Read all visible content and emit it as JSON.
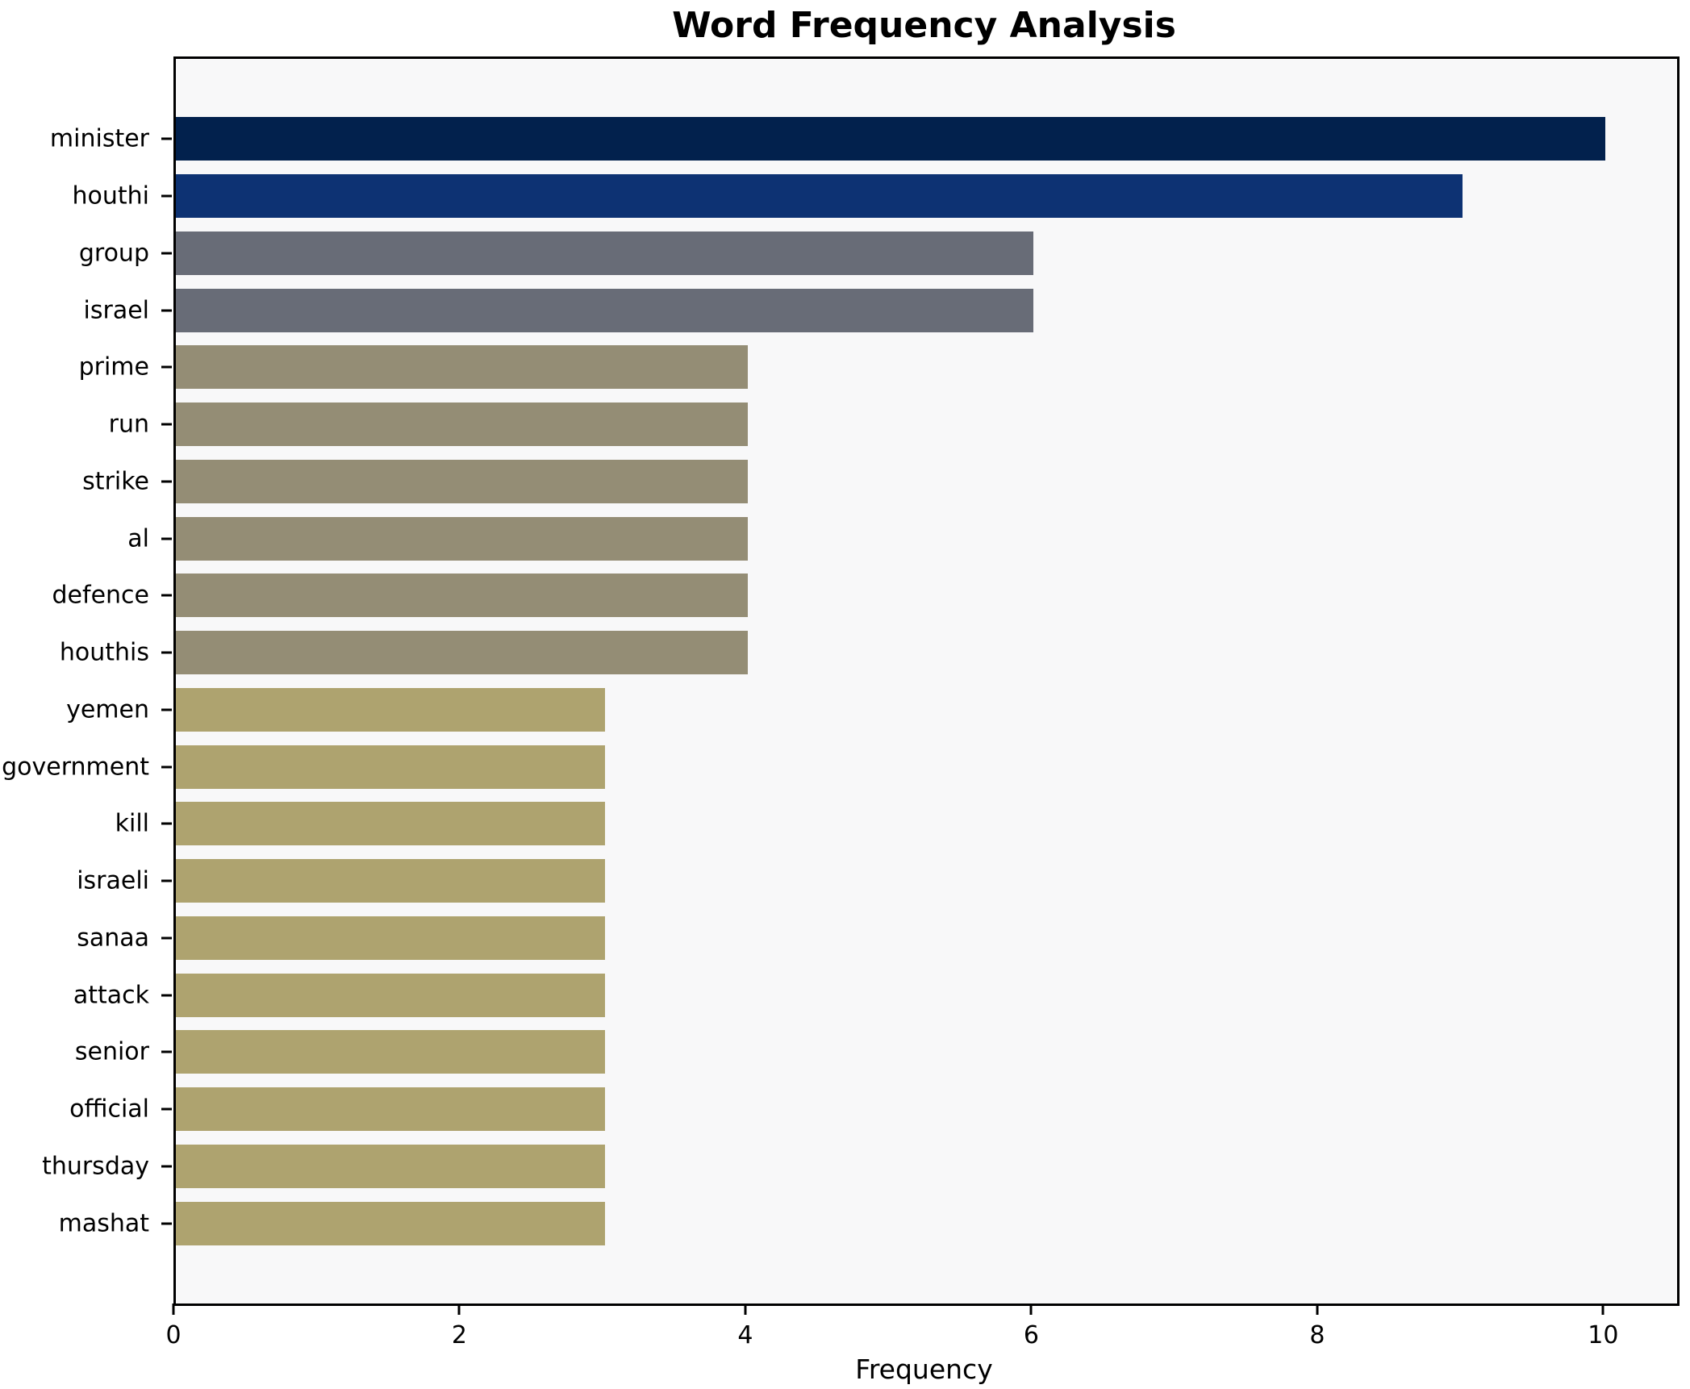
{
  "chart_data": {
    "type": "bar",
    "orientation": "horizontal",
    "title": "Word Frequency Analysis",
    "xlabel": "Frequency",
    "ylabel": "",
    "xlim": [
      0,
      10.5
    ],
    "x_ticks": [
      0,
      2,
      4,
      6,
      8,
      10
    ],
    "grid": false,
    "legend": "none",
    "plot_background": "#f8f8f9",
    "spine_color": "#000000",
    "categories": [
      "minister",
      "houthi",
      "group",
      "israel",
      "prime",
      "run",
      "strike",
      "al",
      "defence",
      "houthis",
      "yemen",
      "government",
      "kill",
      "israeli",
      "sanaa",
      "attack",
      "senior",
      "official",
      "thursday",
      "mashat"
    ],
    "values": [
      10,
      9,
      6,
      6,
      4,
      4,
      4,
      4,
      4,
      4,
      3,
      3,
      3,
      3,
      3,
      3,
      3,
      3,
      3,
      3
    ],
    "bar_colors": [
      "#02214d",
      "#0d3273",
      "#686c77",
      "#686c77",
      "#948d75",
      "#948d75",
      "#948d75",
      "#948d75",
      "#948d75",
      "#948d75",
      "#aea36f",
      "#aea36f",
      "#aea36f",
      "#aea36f",
      "#aea36f",
      "#aea36f",
      "#aea36f",
      "#aea36f",
      "#aea36f",
      "#aea36f"
    ]
  }
}
